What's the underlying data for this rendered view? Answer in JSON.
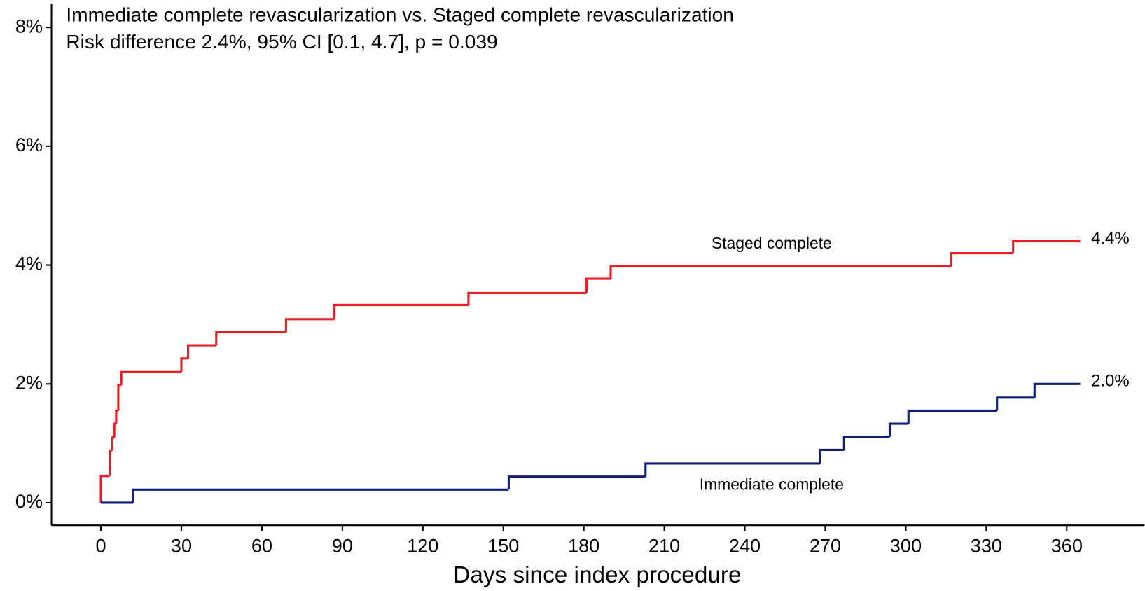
{
  "chart_data": {
    "type": "step",
    "title": "Immediate complete revascularization vs. Staged complete revascularization",
    "subtitle": "Risk difference 2.4%, 95% CI [0.1, 4.7], p = 0.039",
    "xlabel": "Days since index procedure",
    "xlim": [
      -18.4,
      389
    ],
    "ylim": [
      -0.38,
      8.4
    ],
    "xticks": [
      0,
      30,
      60,
      90,
      120,
      150,
      180,
      210,
      240,
      270,
      300,
      330,
      360
    ],
    "yticks": [
      {
        "value": 0,
        "label": "0%"
      },
      {
        "value": 2,
        "label": "2%"
      },
      {
        "value": 4,
        "label": "4%"
      },
      {
        "value": 6,
        "label": "6%"
      },
      {
        "value": 8,
        "label": "8%"
      }
    ],
    "series": [
      {
        "name": "Staged complete",
        "color": "#ee1c25",
        "end_label": "4.4%",
        "x": [
          0,
          0,
          3.3,
          4.3,
          5,
          5.7,
          6.5,
          7.6,
          30,
          32.5,
          43,
          69,
          87,
          137,
          181,
          190,
          317,
          340,
          365
        ],
        "values": [
          0,
          0.45,
          0.88,
          1.1,
          1.33,
          1.55,
          1.98,
          2.2,
          2.43,
          2.65,
          2.87,
          3.09,
          3.33,
          3.53,
          3.77,
          3.98,
          4.2,
          4.4,
          4.4
        ]
      },
      {
        "name": "Immediate complete",
        "color": "#0f1f78",
        "end_label": "2.0%",
        "x": [
          0,
          12,
          152,
          203,
          268,
          277,
          294,
          301,
          334,
          348,
          365
        ],
        "values": [
          0,
          0.22,
          0.44,
          0.66,
          0.89,
          1.11,
          1.33,
          1.55,
          1.77,
          2.0,
          2.0
        ]
      }
    ]
  }
}
